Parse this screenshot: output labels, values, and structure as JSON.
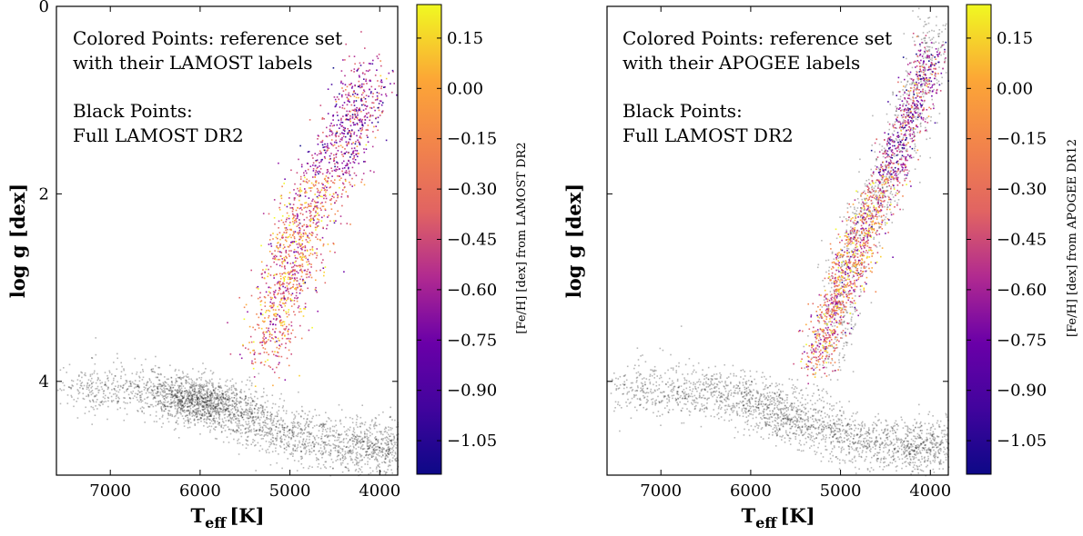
{
  "chart_data": [
    {
      "type": "scatter",
      "x_range": [
        7600,
        3800
      ],
      "y_range": [
        0,
        5.0
      ],
      "x_ticks": [
        7000,
        6000,
        5000,
        4000
      ],
      "y_ticks": [
        0,
        2,
        4
      ],
      "xlabel_main": "T",
      "xlabel_sub": "eff",
      "xlabel_unit": "[K]",
      "ylabel": "log g [dex]",
      "annotation": [
        "Colored Points: reference set",
        "with their LAMOST labels",
        "Black Points:",
        "Full LAMOST DR2"
      ],
      "colorbar": {
        "label": "[Fe/H] [dex] from LAMOST DR2",
        "range": [
          -1.15,
          0.25
        ],
        "ticks": [
          0.15,
          0.0,
          -0.15,
          -0.3,
          -0.45,
          -0.6,
          -0.75,
          -0.9,
          -1.05
        ],
        "tick_labels": [
          "0.15",
          "0.00",
          "−0.15",
          "−0.30",
          "−0.45",
          "−0.60",
          "−0.75",
          "−0.90",
          "−1.05"
        ],
        "colormap": "plasma"
      },
      "series": [
        {
          "role": "black",
          "structures": [
            {
              "kind": "main-sequence",
              "points": [
                [
                  7400,
                  4.05
                ],
                [
                  6800,
                  4.08
                ],
                [
                  6200,
                  4.15
                ],
                [
                  5800,
                  4.25
                ],
                [
                  5500,
                  4.38
                ],
                [
                  5200,
                  4.5
                ],
                [
                  4800,
                  4.62
                ],
                [
                  4400,
                  4.7
                ],
                [
                  4000,
                  4.72
                ],
                [
                  3900,
                  4.6
                ]
              ]
            },
            {
              "kind": "turnoff-clump",
              "points": [
                [
                  6300,
                  4.1
                ],
                [
                  6000,
                  4.2
                ],
                [
                  5800,
                  4.25
                ]
              ]
            }
          ]
        },
        {
          "role": "colored",
          "structures": [
            {
              "kind": "giant-branch",
              "points": [
                [
                  5300,
                  3.6
                ],
                [
                  5100,
                  3.2
                ],
                [
                  5000,
                  2.8
                ],
                [
                  4900,
                  2.4
                ],
                [
                  4700,
                  2.0
                ],
                [
                  4500,
                  1.6
                ],
                [
                  4300,
                  1.2
                ],
                [
                  4100,
                  0.8
                ]
              ]
            }
          ]
        }
      ]
    },
    {
      "type": "scatter",
      "x_range": [
        7600,
        3800
      ],
      "y_range": [
        0,
        5.0
      ],
      "x_ticks": [
        7000,
        6000,
        5000,
        4000
      ],
      "y_ticks": [
        0,
        2,
        4
      ],
      "xlabel_main": "T",
      "xlabel_sub": "eff",
      "xlabel_unit": "[K]",
      "ylabel": "log g [dex]",
      "annotation": [
        "Colored Points: reference set",
        "with their APOGEE labels",
        "Black Points:",
        "Full LAMOST DR2"
      ],
      "colorbar": {
        "label": "[Fe/H] [dex] from APOGEE DR12",
        "range": [
          -1.15,
          0.25
        ],
        "ticks": [
          0.15,
          0.0,
          -0.15,
          -0.3,
          -0.45,
          -0.6,
          -0.75,
          -0.9,
          -1.05
        ],
        "tick_labels": [
          "0.15",
          "0.00",
          "−0.15",
          "−0.30",
          "−0.45",
          "−0.60",
          "−0.75",
          "−0.90",
          "−1.05"
        ],
        "colormap": "plasma"
      },
      "series": [
        {
          "role": "black",
          "structures": [
            {
              "kind": "main-sequence",
              "points": [
                [
                  7400,
                  4.05
                ],
                [
                  6800,
                  4.08
                ],
                [
                  6200,
                  4.15
                ],
                [
                  5800,
                  4.25
                ],
                [
                  5500,
                  4.38
                ],
                [
                  5200,
                  4.5
                ],
                [
                  4800,
                  4.62
                ],
                [
                  4400,
                  4.7
                ],
                [
                  4000,
                  4.72
                ],
                [
                  3900,
                  4.6
                ]
              ]
            },
            {
              "kind": "giant-branch",
              "points": [
                [
                  5200,
                  3.8
                ],
                [
                  5000,
                  3.2
                ],
                [
                  4900,
                  2.6
                ],
                [
                  4700,
                  2.2
                ],
                [
                  4500,
                  1.8
                ],
                [
                  4300,
                  1.3
                ],
                [
                  4100,
                  0.8
                ],
                [
                  3950,
                  0.2
                ]
              ]
            }
          ]
        },
        {
          "role": "colored",
          "structures": [
            {
              "kind": "giant-branch",
              "points": [
                [
                  5300,
                  3.8
                ],
                [
                  5100,
                  3.3
                ],
                [
                  4950,
                  2.9
                ],
                [
                  4800,
                  2.5
                ],
                [
                  4600,
                  2.1
                ],
                [
                  4400,
                  1.6
                ],
                [
                  4200,
                  1.1
                ],
                [
                  4000,
                  0.5
                ]
              ]
            }
          ]
        }
      ]
    }
  ]
}
